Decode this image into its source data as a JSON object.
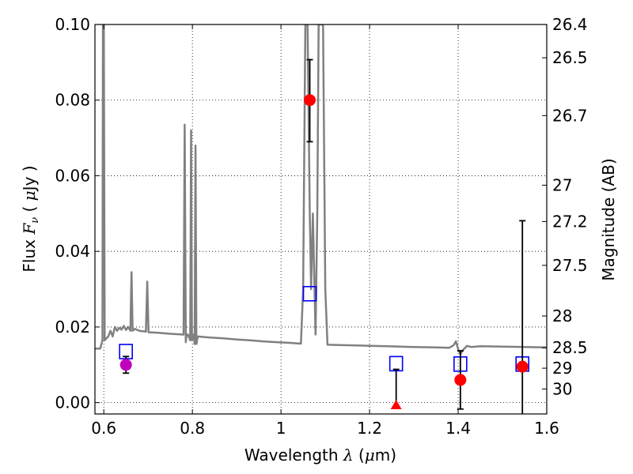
{
  "chart_data": {
    "type": "scatter",
    "xlabel": "Wavelength  λ (μm)",
    "ylabel_left": "Flux  F_ν  ( μJy )",
    "ylabel_right": "Magnitude (AB)",
    "xlim": [
      0.58,
      1.6
    ],
    "ylim": [
      -0.003,
      0.1
    ],
    "x_ticks": [
      0.6,
      0.8,
      1.0,
      1.2,
      1.4,
      1.6
    ],
    "x_tick_labels": [
      "0.6",
      "0.8",
      "1",
      "1.2",
      "1.4",
      "1.6"
    ],
    "y_ticks": [
      0.0,
      0.02,
      0.04,
      0.06,
      0.08,
      0.1
    ],
    "y_tick_labels": [
      "0.00",
      "0.02",
      "0.04",
      "0.06",
      "0.08",
      "0.10"
    ],
    "right_ticks": [
      {
        "label": "26.4",
        "flux": 0.1
      },
      {
        "label": "26.5",
        "flux": 0.0912
      },
      {
        "label": "26.7",
        "flux": 0.0759
      },
      {
        "label": "27",
        "flux": 0.0575
      },
      {
        "label": "27.2",
        "flux": 0.0479
      },
      {
        "label": "27.5",
        "flux": 0.0363
      },
      {
        "label": "28",
        "flux": 0.0229
      },
      {
        "label": "28.5",
        "flux": 0.0145
      },
      {
        "label": "29",
        "flux": 0.0091
      },
      {
        "label": "30",
        "flux": 0.0036
      }
    ],
    "grid": true,
    "series": [
      {
        "kind": "sed-model-line",
        "color": "#808080",
        "points": [
          [
            0.58,
            0.0143
          ],
          [
            0.592,
            0.0143
          ],
          [
            0.597,
            0.0165
          ],
          [
            0.598,
            0.1
          ],
          [
            0.6,
            0.1
          ],
          [
            0.602,
            0.0165
          ],
          [
            0.61,
            0.0175
          ],
          [
            0.615,
            0.019
          ],
          [
            0.62,
            0.0175
          ],
          [
            0.625,
            0.02
          ],
          [
            0.63,
            0.019
          ],
          [
            0.635,
            0.0198
          ],
          [
            0.64,
            0.0193
          ],
          [
            0.645,
            0.0203
          ],
          [
            0.65,
            0.0192
          ],
          [
            0.655,
            0.02
          ],
          [
            0.66,
            0.019
          ],
          [
            0.6625,
            0.0345
          ],
          [
            0.665,
            0.019
          ],
          [
            0.67,
            0.0195
          ],
          [
            0.68,
            0.019
          ],
          [
            0.695,
            0.0188
          ],
          [
            0.698,
            0.032
          ],
          [
            0.701,
            0.0186
          ],
          [
            0.72,
            0.0185
          ],
          [
            0.75,
            0.0182
          ],
          [
            0.78,
            0.018
          ],
          [
            0.7825,
            0.0735
          ],
          [
            0.785,
            0.016
          ],
          [
            0.787,
            0.018
          ],
          [
            0.79,
            0.018
          ],
          [
            0.795,
            0.0165
          ],
          [
            0.797,
            0.072
          ],
          [
            0.799,
            0.0165
          ],
          [
            0.803,
            0.018
          ],
          [
            0.805,
            0.0155
          ],
          [
            0.807,
            0.068
          ],
          [
            0.809,
            0.0155
          ],
          [
            0.812,
            0.0175
          ],
          [
            0.84,
            0.0172
          ],
          [
            0.87,
            0.017
          ],
          [
            0.9,
            0.0167
          ],
          [
            0.93,
            0.0165
          ],
          [
            0.96,
            0.0162
          ],
          [
            0.99,
            0.016
          ],
          [
            1.02,
            0.0158
          ],
          [
            1.045,
            0.0156
          ],
          [
            1.05,
            0.03
          ],
          [
            1.055,
            0.1
          ],
          [
            1.06,
            0.1
          ],
          [
            1.065,
            0.05
          ],
          [
            1.068,
            0.03
          ],
          [
            1.072,
            0.05
          ],
          [
            1.078,
            0.018
          ],
          [
            1.082,
            0.05
          ],
          [
            1.085,
            0.1
          ],
          [
            1.095,
            0.1
          ],
          [
            1.1,
            0.03
          ],
          [
            1.105,
            0.0153
          ],
          [
            1.14,
            0.0152
          ],
          [
            1.18,
            0.0151
          ],
          [
            1.2,
            0.015
          ],
          [
            1.24,
            0.0149
          ],
          [
            1.27,
            0.0148
          ],
          [
            1.3,
            0.0147
          ],
          [
            1.35,
            0.0146
          ],
          [
            1.38,
            0.0145
          ],
          [
            1.39,
            0.0152
          ],
          [
            1.395,
            0.0162
          ],
          [
            1.4,
            0.0142
          ],
          [
            1.405,
            0.0128
          ],
          [
            1.41,
            0.0138
          ],
          [
            1.42,
            0.015
          ],
          [
            1.43,
            0.0147
          ],
          [
            1.45,
            0.0149
          ],
          [
            1.5,
            0.0148
          ],
          [
            1.55,
            0.0147
          ],
          [
            1.6,
            0.0146
          ]
        ]
      },
      {
        "kind": "observed-detections",
        "color": "#ff0000",
        "points": [
          {
            "x": 1.065,
            "y": 0.08,
            "err_low": 0.011,
            "err_high": 0.0107
          },
          {
            "x": 1.405,
            "y": 0.006,
            "err_low": 0.0077,
            "err_high": 0.0077
          },
          {
            "x": 1.545,
            "y": 0.0095,
            "err_low": 0.015,
            "err_high": 0.0386
          }
        ]
      },
      {
        "kind": "observed-detection-magenta",
        "color": "#bf00bf",
        "points": [
          {
            "x": 0.65,
            "y": 0.01,
            "err_low": 0.0022,
            "err_high": 0.0022
          }
        ]
      },
      {
        "kind": "upper-limit",
        "color": "#ff0000",
        "points": [
          {
            "x": 1.26,
            "y": -0.0005,
            "err_high": 0.0093
          }
        ]
      },
      {
        "kind": "model-photometry",
        "color": "#0000ff",
        "points": [
          {
            "x": 0.65,
            "y": 0.0135
          },
          {
            "x": 1.065,
            "y": 0.0288
          },
          {
            "x": 1.26,
            "y": 0.0103
          },
          {
            "x": 1.405,
            "y": 0.0102
          },
          {
            "x": 1.545,
            "y": 0.0102
          }
        ]
      }
    ]
  }
}
